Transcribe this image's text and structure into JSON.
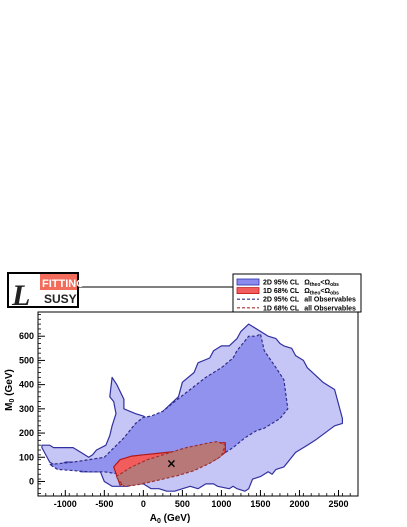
{
  "logo": {
    "letter": "L",
    "top_word": "FITTINO",
    "bottom_word": "SUSY",
    "top_color": "#f26b5b",
    "frame_color": "#000000"
  },
  "chart_data": {
    "type": "area",
    "xlabel_main": "A",
    "xlabel_sub": "0",
    "xlabel_unit": " (GeV)",
    "ylabel_main": "M",
    "ylabel_sub": "0",
    "ylabel_unit": " (GeV)",
    "xlim": [
      -1350,
      2750
    ],
    "ylim": [
      -60,
      700
    ],
    "xticks": [
      -1000,
      -500,
      0,
      500,
      1000,
      1500,
      2000,
      2500
    ],
    "yticks": [
      0,
      100,
      200,
      300,
      400,
      500,
      600
    ],
    "best_fit": {
      "x": 360,
      "y": 75,
      "marker": "×"
    },
    "legend": [
      {
        "key": "leg0",
        "label": "2D 95% CL",
        "extra": "Ω",
        "extra_sub": "theo",
        "extra_rel": "<Ω",
        "extra_sub2": "obs",
        "style": "fill",
        "color": "#8c8cf0",
        "edge": "#2e2eaa"
      },
      {
        "key": "leg1",
        "label": "1D 68% CL",
        "extra": "Ω",
        "extra_sub": "theo",
        "extra_rel": "<Ω",
        "extra_sub2": "obs",
        "style": "fill",
        "color": "#f25c5c",
        "edge": "#c01818"
      },
      {
        "key": "leg2",
        "label": "2D 95% CL",
        "extra": "all Observables",
        "style": "dash",
        "color": "#2e2e8a"
      },
      {
        "key": "leg3",
        "label": "1D 68% CL",
        "extra": "all Observables",
        "style": "dash",
        "color": "#aa3030"
      }
    ],
    "regions": [
      {
        "name": "2D 95% CL Ωtheo<Ωobs",
        "fill": "#c6c6f6",
        "stroke": "#3030a0",
        "dash": false,
        "x": [
          -1300,
          -1300,
          -1200,
          -1150,
          -900,
          -800,
          -700,
          -650,
          -600,
          -480,
          -430,
          -400,
          -350,
          -380,
          -430,
          -400,
          -340,
          -250,
          -250,
          -100,
          0,
          100,
          200,
          250,
          450,
          500,
          650,
          700,
          850,
          900,
          1000,
          1100,
          1200,
          1250,
          1350,
          1400,
          1550,
          1600,
          1700,
          1750,
          1800,
          1900,
          1950,
          2050,
          2100,
          2200,
          2300,
          2450,
          2550,
          2550,
          2450,
          2200,
          2100,
          2050,
          1950,
          1850,
          1800,
          1700,
          1650,
          1600,
          1500,
          1400,
          1350,
          1300,
          1200,
          1150,
          1100,
          950,
          900,
          800,
          700,
          600,
          400,
          300,
          200,
          100,
          0,
          -100,
          -200,
          -400,
          -500,
          -550,
          -800,
          -850,
          -900,
          -1000,
          -1050,
          -1150,
          -1200,
          -1300
        ],
        "y": [
          140,
          150,
          150,
          140,
          140,
          120,
          100,
          110,
          130,
          150,
          190,
          230,
          280,
          330,
          350,
          430,
          400,
          340,
          300,
          280,
          270,
          250,
          240,
          290,
          350,
          410,
          450,
          490,
          510,
          540,
          560,
          560,
          590,
          620,
          650,
          640,
          610,
          600,
          590,
          570,
          560,
          550,
          520,
          500,
          470,
          440,
          410,
          380,
          260,
          240,
          230,
          170,
          150,
          140,
          120,
          80,
          60,
          50,
          30,
          40,
          20,
          10,
          -30,
          -40,
          -30,
          -20,
          -30,
          -20,
          -10,
          -10,
          -30,
          -20,
          -40,
          -40,
          -30,
          -30,
          -10,
          -10,
          -20,
          -20,
          0,
          40,
          40,
          50,
          80,
          80,
          70,
          70,
          80,
          140
        ]
      },
      {
        "name": "2D 95% CL all Observables",
        "fill": "#9191ee",
        "stroke": "#2e2e8a",
        "dash": true,
        "x": [
          -1200,
          -900,
          -500,
          -250,
          -100,
          0,
          100,
          250,
          400,
          600,
          800,
          1000,
          1150,
          1200,
          1350,
          1450,
          1500,
          1550,
          1700,
          1800,
          1850,
          1750,
          1650,
          1550,
          1450,
          1300,
          1150,
          1000,
          850,
          700,
          500,
          300,
          100,
          -100,
          -300,
          -500,
          -700,
          -900,
          -1100,
          -1200
        ],
        "y": [
          70,
          80,
          100,
          180,
          240,
          265,
          270,
          290,
          330,
          380,
          430,
          470,
          510,
          540,
          600,
          600,
          610,
          540,
          470,
          420,
          300,
          260,
          240,
          220,
          210,
          180,
          140,
          110,
          80,
          70,
          60,
          50,
          40,
          40,
          30,
          40,
          40,
          45,
          50,
          70
        ]
      },
      {
        "name": "1D 68% CL Ωtheo<Ωobs",
        "fill": "#f25c5c",
        "stroke": "#b01a1a",
        "dash": false,
        "x": [
          -380,
          -300,
          -150,
          0,
          150,
          300,
          450,
          600,
          750,
          850,
          950,
          1050,
          1050,
          950,
          800,
          600,
          400,
          200,
          0,
          -150,
          -300,
          -380
        ],
        "y": [
          60,
          90,
          105,
          110,
          115,
          120,
          125,
          135,
          145,
          155,
          160,
          160,
          120,
          95,
          70,
          45,
          30,
          20,
          10,
          0,
          -15,
          60
        ]
      },
      {
        "name": "1D 68% CL all Observables",
        "fill": "#b87878",
        "stroke": "#993333",
        "dash": true,
        "x": [
          -350,
          -250,
          -150,
          -50,
          50,
          150,
          250,
          400,
          550,
          700,
          850,
          950,
          1050,
          1000,
          850,
          650,
          450,
          250,
          50,
          -100,
          -250,
          -350
        ],
        "y": [
          20,
          40,
          60,
          75,
          90,
          100,
          110,
          125,
          140,
          150,
          160,
          165,
          150,
          105,
          75,
          45,
          25,
          10,
          -5,
          -15,
          -20,
          20
        ]
      }
    ]
  }
}
